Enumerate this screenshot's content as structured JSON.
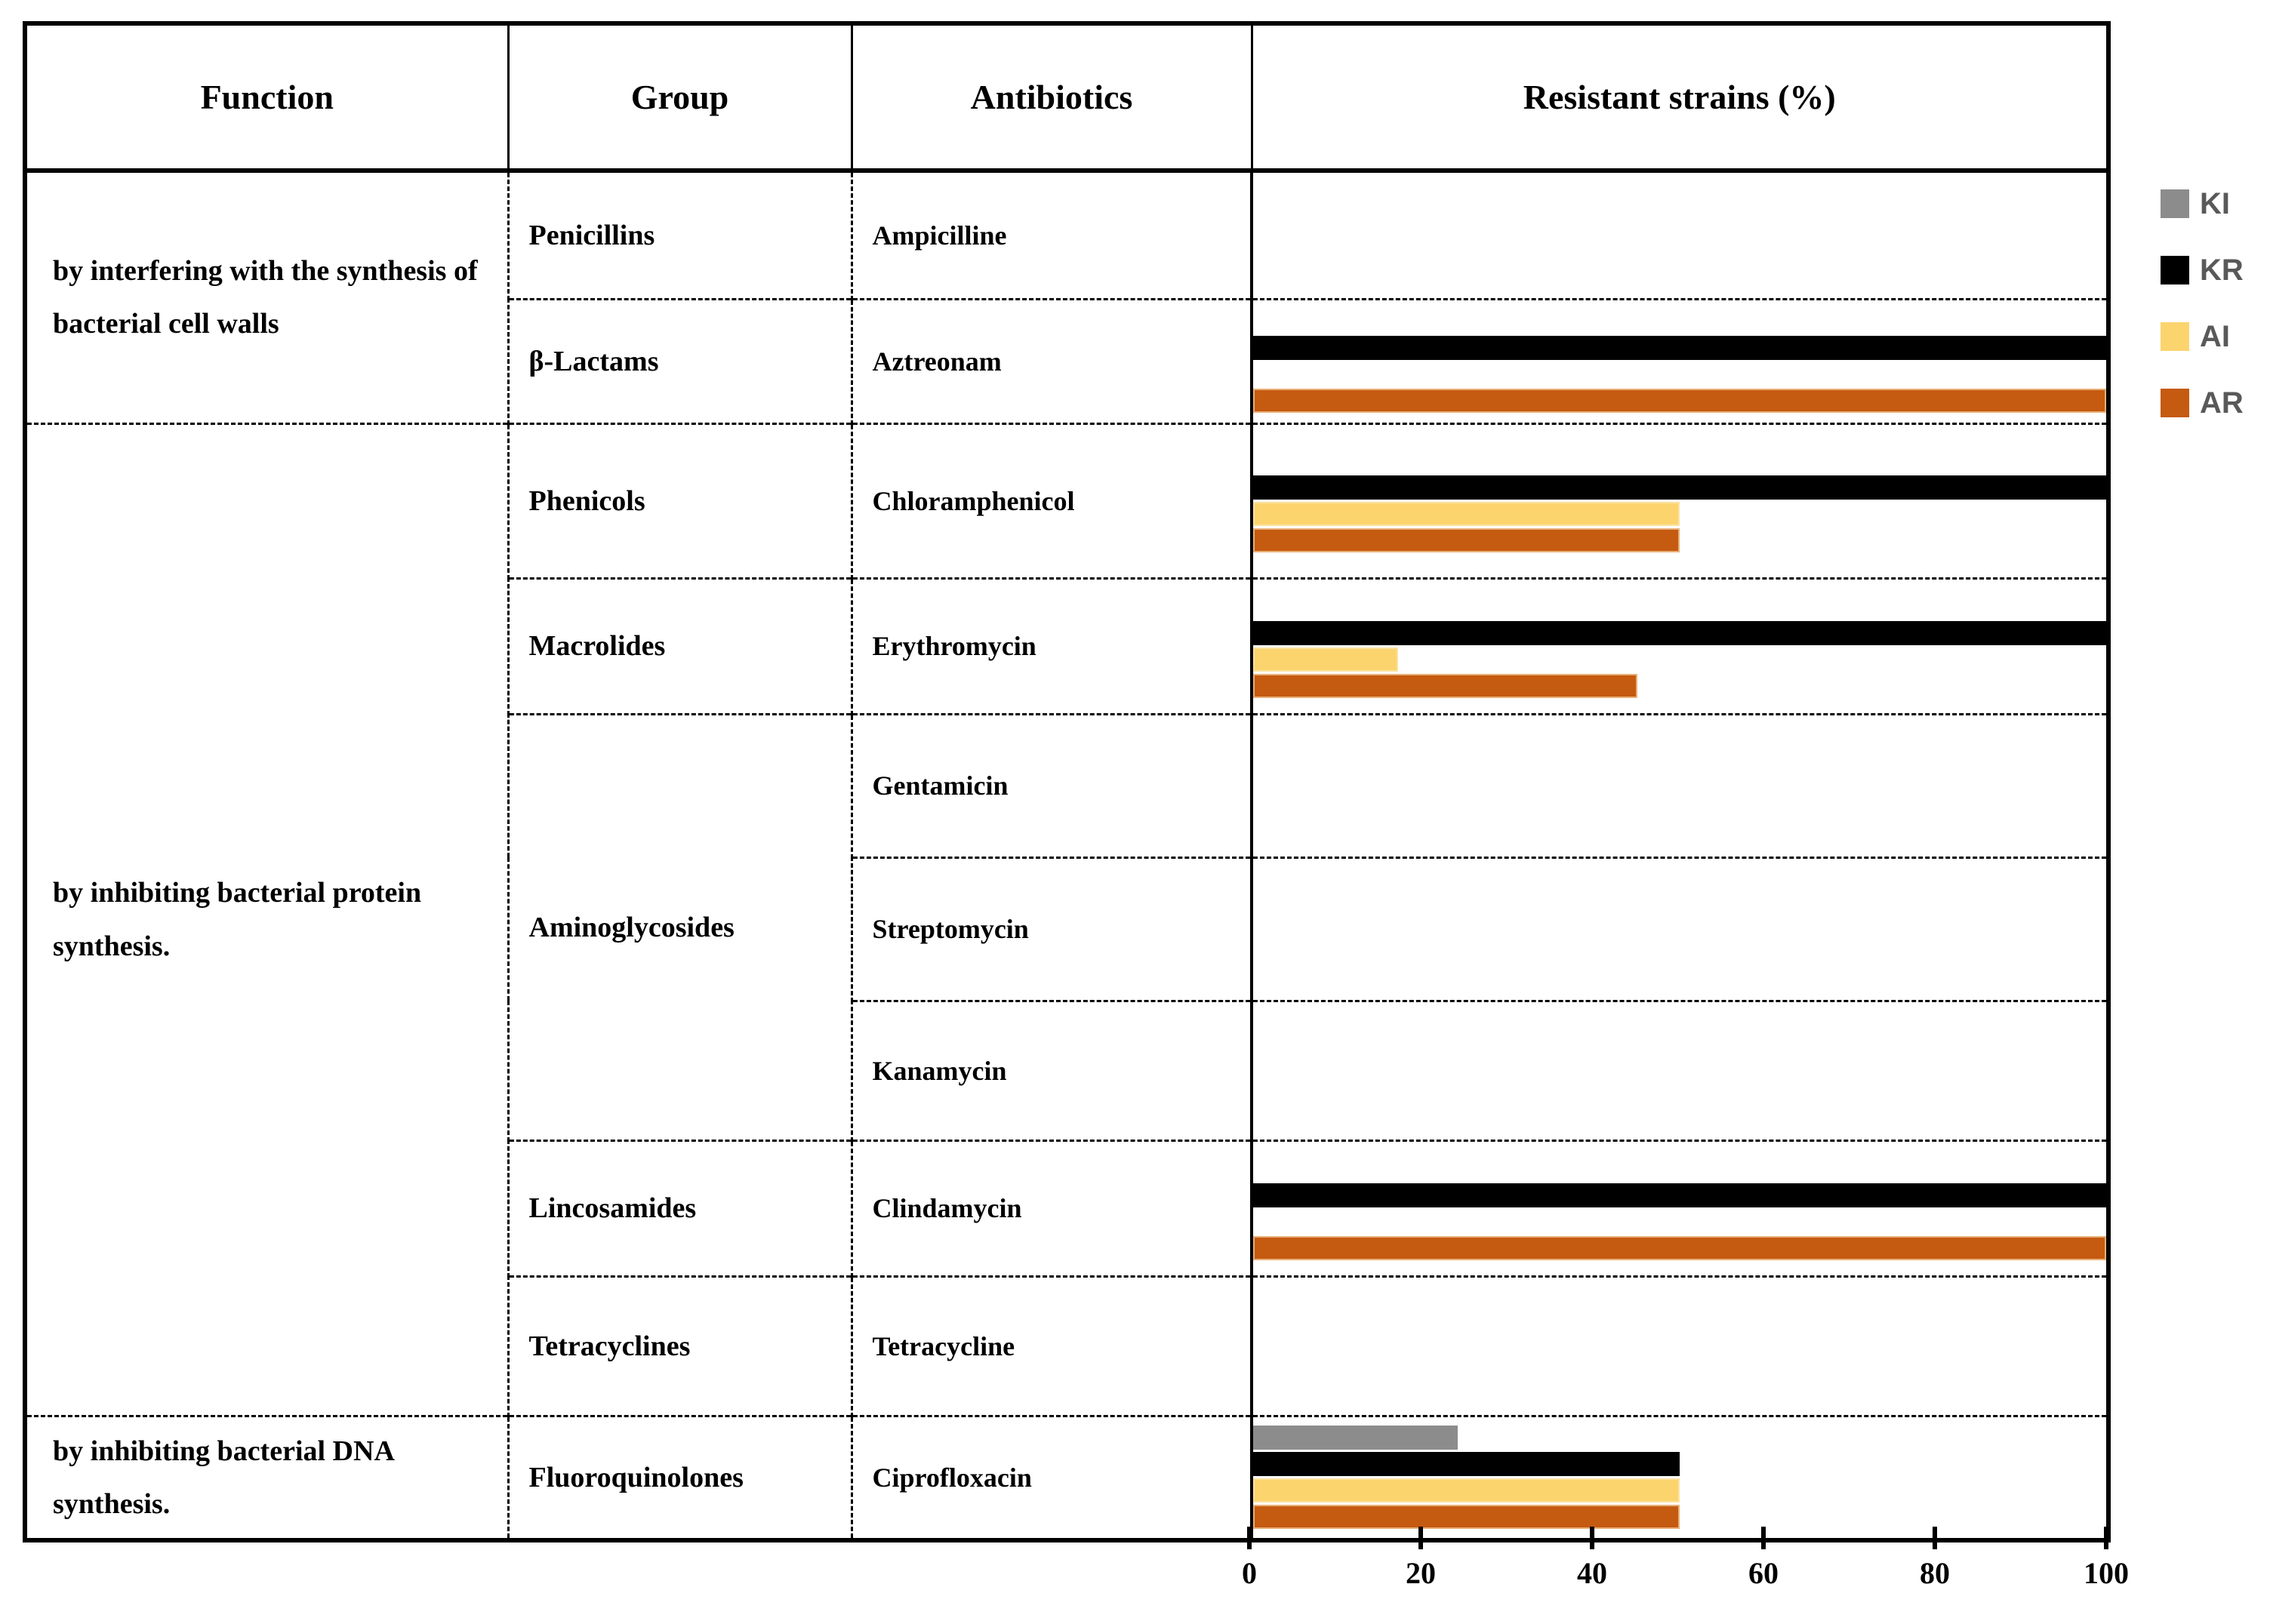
{
  "header": {
    "function": "Function",
    "group": "Group",
    "antibiotics": "Antibiotics",
    "chart": "Resistant strains (%)"
  },
  "functions": [
    {
      "label": "by interfering with the synthesis of bacterial cell walls"
    },
    {
      "label": "by inhibiting bacterial protein synthesis."
    },
    {
      "label": "by inhibiting bacterial DNA synthesis."
    }
  ],
  "rows": [
    {
      "group": "Penicillins",
      "antibiotic": "Ampicilline",
      "values": {
        "KI": 0,
        "KR": 0,
        "AI": 0,
        "AR": 0
      }
    },
    {
      "group": "β-Lactams",
      "antibiotic": "Aztreonam",
      "values": {
        "KI": 0,
        "KR": 100,
        "AI": 0,
        "AR": 100
      }
    },
    {
      "group": "Phenicols",
      "antibiotic": "Chloramphenicol",
      "values": {
        "KI": 0,
        "KR": 100,
        "AI": 50,
        "AR": 50
      }
    },
    {
      "group": "Macrolides",
      "antibiotic": "Erythromycin",
      "values": {
        "KI": 0,
        "KR": 100,
        "AI": 17,
        "AR": 45
      }
    },
    {
      "group": "Aminoglycosides",
      "antibiotic": "Gentamicin",
      "values": {
        "KI": 0,
        "KR": 0,
        "AI": 0,
        "AR": 0
      }
    },
    {
      "group": "Aminoglycosides",
      "antibiotic": "Streptomycin",
      "values": {
        "KI": 0,
        "KR": 0,
        "AI": 0,
        "AR": 0
      }
    },
    {
      "group": "Aminoglycosides",
      "antibiotic": "Kanamycin",
      "values": {
        "KI": 0,
        "KR": 0,
        "AI": 0,
        "AR": 0
      }
    },
    {
      "group": "Lincosamides",
      "antibiotic": "Clindamycin",
      "values": {
        "KI": 0,
        "KR": 100,
        "AI": 0,
        "AR": 100
      }
    },
    {
      "group": "Tetracyclines",
      "antibiotic": "Tetracycline",
      "values": {
        "KI": 0,
        "KR": 0,
        "AI": 0,
        "AR": 0
      }
    },
    {
      "group": "Fluoroquinolones",
      "antibiotic": "Ciprofloxacin",
      "values": {
        "KI": 24,
        "KR": 50,
        "AI": 50,
        "AR": 50
      }
    }
  ],
  "colors": {
    "KI": "#8C8C8C",
    "KR": "#000000",
    "AI": "#FBD46E",
    "AR": "#C55A11"
  },
  "legend": [
    {
      "label": "KI",
      "color": "#8C8C8C"
    },
    {
      "label": "KR",
      "color": "#000000"
    },
    {
      "label": "AI",
      "color": "#FBD46E"
    },
    {
      "label": "AR",
      "color": "#C55A11"
    }
  ],
  "axis": {
    "ticks": [
      "0",
      "20",
      "40",
      "60",
      "80",
      "100"
    ]
  },
  "chart_data": {
    "type": "bar",
    "orientation": "horizontal",
    "title": "Resistant strains (%)",
    "xlabel": "Resistant strains (%)",
    "xlim": [
      0,
      100
    ],
    "x_ticks": [
      0,
      20,
      40,
      60,
      80,
      100
    ],
    "grid": false,
    "legend_position": "right",
    "categories": [
      "Ampicilline",
      "Aztreonam",
      "Chloramphenicol",
      "Erythromycin",
      "Gentamicin",
      "Streptomycin",
      "Kanamycin",
      "Clindamycin",
      "Tetracycline",
      "Ciprofloxacin"
    ],
    "series": [
      {
        "name": "KI",
        "color": "#8C8C8C",
        "values": [
          0,
          0,
          0,
          0,
          0,
          0,
          0,
          0,
          0,
          24
        ]
      },
      {
        "name": "KR",
        "color": "#000000",
        "values": [
          0,
          100,
          100,
          100,
          0,
          0,
          0,
          100,
          0,
          50
        ]
      },
      {
        "name": "AI",
        "color": "#FBD46E",
        "values": [
          0,
          0,
          50,
          17,
          0,
          0,
          0,
          0,
          0,
          50
        ]
      },
      {
        "name": "AR",
        "color": "#C55A11",
        "values": [
          0,
          100,
          50,
          45,
          0,
          0,
          0,
          100,
          0,
          50
        ]
      }
    ]
  }
}
